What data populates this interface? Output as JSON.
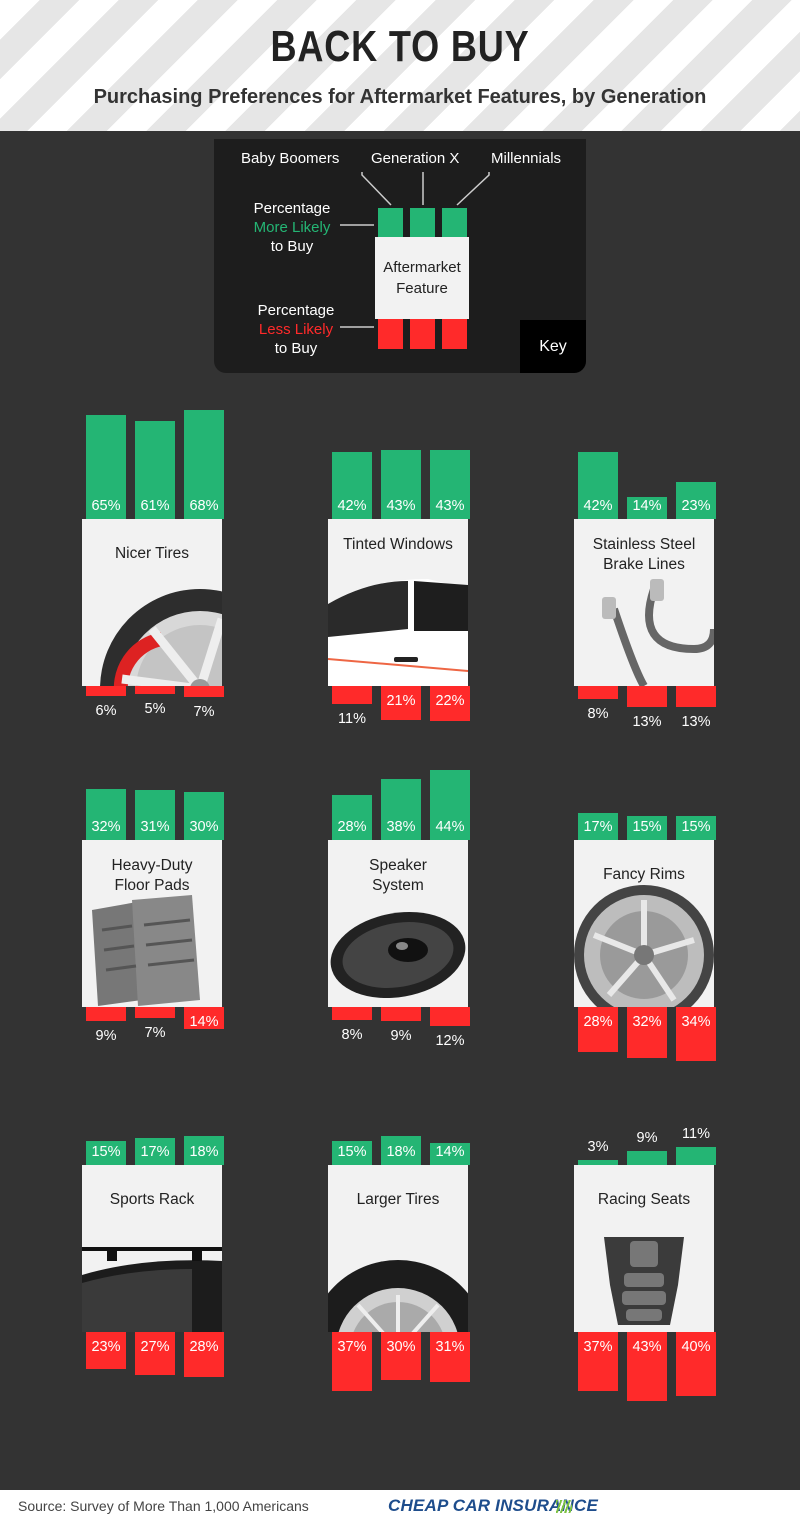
{
  "header": {
    "title": "BACK TO BUY",
    "subtitle": "Purchasing Preferences for Aftermarket Features, by Generation"
  },
  "key": {
    "series": [
      "Baby Boomers",
      "Generation X",
      "Millennials"
    ],
    "more_lines": [
      "Percentage",
      "More Likely",
      "to Buy"
    ],
    "less_lines": [
      "Percentage",
      "Less Likely",
      "to Buy"
    ],
    "feature_lines": [
      "Aftermarket",
      "Feature"
    ],
    "corner_label": "Key"
  },
  "colors": {
    "more": "#24b574",
    "less": "#ff2a2a",
    "panel": "#f2f2f2",
    "background": "#333333"
  },
  "chart_data": {
    "type": "bar",
    "series_names": [
      "Baby Boomers",
      "Generation X",
      "Millennials"
    ],
    "features": [
      {
        "name": "Nicer Tires",
        "more": [
          65,
          61,
          68
        ],
        "less": [
          6,
          5,
          7
        ],
        "icon": "tire-icon"
      },
      {
        "name": "Tinted Windows",
        "more": [
          42,
          43,
          43
        ],
        "less": [
          11,
          21,
          22
        ],
        "icon": "car-window-icon"
      },
      {
        "name": "Stainless Steel Brake Lines",
        "more": [
          42,
          14,
          23
        ],
        "less": [
          8,
          13,
          13
        ],
        "icon": "brake-lines-icon"
      },
      {
        "name": "Heavy-Duty Floor Pads",
        "more": [
          32,
          31,
          30
        ],
        "less": [
          9,
          7,
          14
        ],
        "icon": "floor-mat-icon"
      },
      {
        "name": "Speaker System",
        "more": [
          28,
          38,
          44
        ],
        "less": [
          8,
          9,
          12
        ],
        "icon": "speaker-icon"
      },
      {
        "name": "Fancy Rims",
        "more": [
          17,
          15,
          15
        ],
        "less": [
          28,
          32,
          34
        ],
        "icon": "rim-icon"
      },
      {
        "name": "Sports Rack",
        "more": [
          15,
          17,
          18
        ],
        "less": [
          23,
          27,
          28
        ],
        "icon": "roof-rack-icon"
      },
      {
        "name": "Larger Tires",
        "more": [
          15,
          18,
          14
        ],
        "less": [
          37,
          30,
          31
        ],
        "icon": "large-tire-icon"
      },
      {
        "name": "Racing Seats",
        "more": [
          3,
          9,
          11
        ],
        "less": [
          37,
          43,
          40
        ],
        "icon": "racing-seat-icon"
      }
    ]
  },
  "footer": {
    "source": "Source: Survey of More Than 1,000 Americans",
    "brand": "CHEAP CAR INSURANCE"
  }
}
